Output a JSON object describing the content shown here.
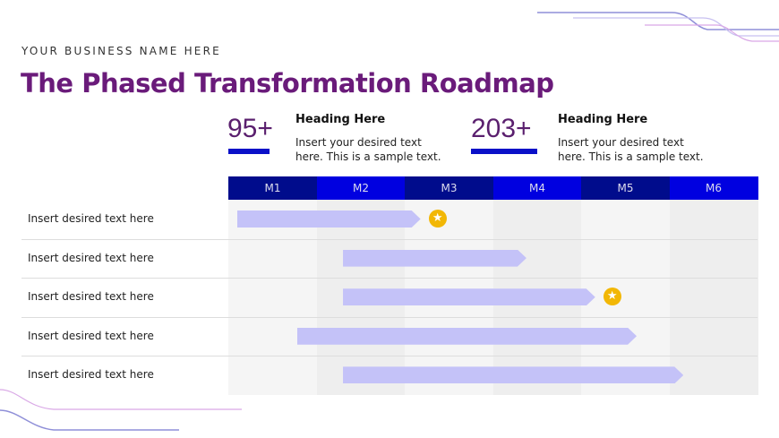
{
  "business_name": "YOUR BUSINESS NAME HERE",
  "title": "The Phased Transformation Roadmap",
  "stats": [
    {
      "value": "95+",
      "heading": "Heading Here",
      "text": "Insert your desired text here. This is a sample text."
    },
    {
      "value": "203+",
      "heading": "Heading Here",
      "text": "Insert your desired text here. This is a sample text."
    }
  ],
  "months": [
    "M1",
    "M2",
    "M3",
    "M4",
    "M5",
    "M6"
  ],
  "rows": [
    {
      "label": "Insert desired text here",
      "start_month": 0.1,
      "end_month": 2.18,
      "milestone": true
    },
    {
      "label": "Insert desired text here",
      "start_month": 1.3,
      "end_month": 3.38,
      "milestone": false
    },
    {
      "label": "Insert desired text here",
      "start_month": 1.3,
      "end_month": 4.16,
      "milestone": true
    },
    {
      "label": "Insert desired text here",
      "start_month": 0.78,
      "end_month": 4.63,
      "milestone": false
    },
    {
      "label": "Insert desired text here",
      "start_month": 1.3,
      "end_month": 5.16,
      "milestone": false
    }
  ],
  "colors": {
    "title": "#6a1b7a",
    "header_dark": "#000c8c",
    "header_light": "#0000e0",
    "bar": "#c4c2f8",
    "star": "#f2b705"
  }
}
